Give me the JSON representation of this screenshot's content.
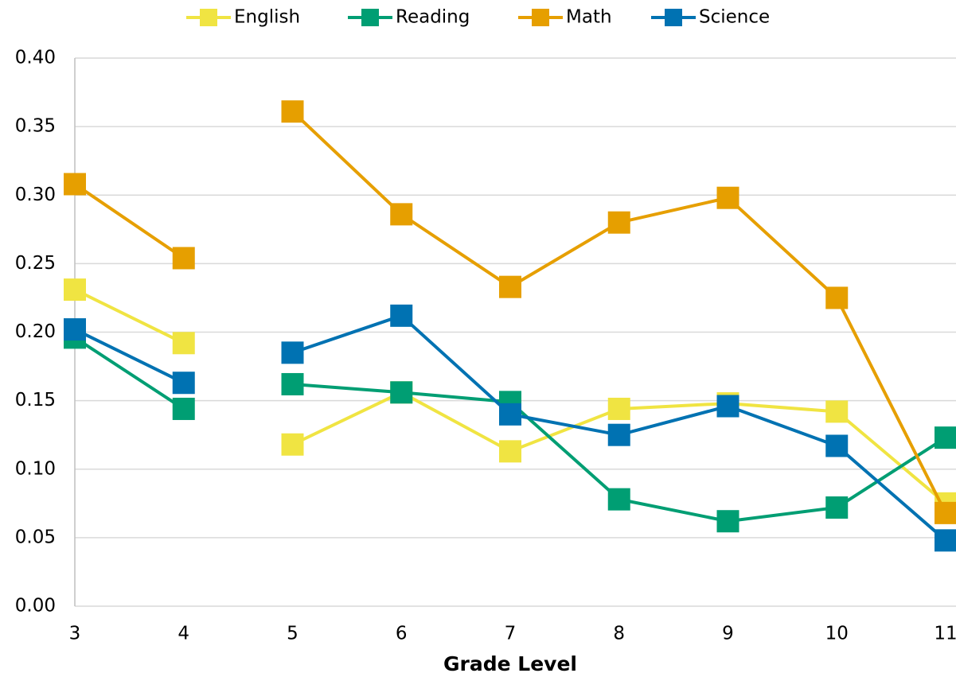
{
  "chart_data": {
    "type": "line",
    "x_label": "Grade Level",
    "categories": [
      "3",
      "4",
      "5",
      "6",
      "7",
      "8",
      "9",
      "10",
      "11"
    ],
    "break_after": [
      1
    ],
    "series": [
      {
        "name": "English",
        "color": "#f0e442",
        "values": [
          0.231,
          0.192,
          0.118,
          0.156,
          0.113,
          0.144,
          0.148,
          0.142,
          0.075
        ]
      },
      {
        "name": "Reading",
        "color": "#009e73",
        "values": [
          0.196,
          0.144,
          0.162,
          0.156,
          0.149,
          0.078,
          0.062,
          0.072,
          0.123
        ]
      },
      {
        "name": "Math",
        "color": "#e69f00",
        "values": [
          0.308,
          0.254,
          0.361,
          0.286,
          0.233,
          0.28,
          0.298,
          0.225,
          0.068
        ]
      },
      {
        "name": "Science",
        "color": "#0072b2",
        "values": [
          0.202,
          0.163,
          0.185,
          0.212,
          0.14,
          0.125,
          0.146,
          0.117,
          0.048
        ]
      }
    ],
    "ylim": [
      0,
      0.4
    ],
    "yticks": [
      {
        "value": 0,
        "label": "0.00"
      },
      0.05,
      {
        "value": 0.1,
        "label": "0.10"
      },
      0.15,
      {
        "value": 0.2,
        "label": "0.20"
      },
      0.25,
      {
        "value": 0.3,
        "label": "0.30"
      },
      0.35,
      {
        "value": 0.4,
        "label": "0.40"
      }
    ],
    "grid": true,
    "legend": "top"
  }
}
